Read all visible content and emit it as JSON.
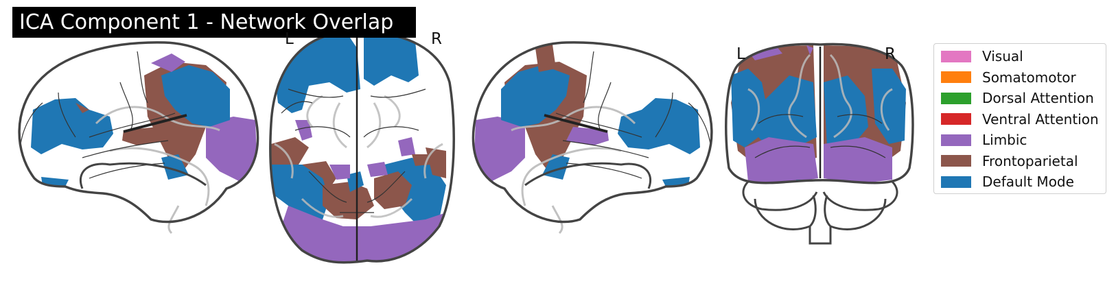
{
  "title": "ICA Component 1 - Network Overlap",
  "hemisphere_labels": {
    "left": "L",
    "right": "R"
  },
  "legend": [
    {
      "label": "Visual",
      "color": "#e377c2"
    },
    {
      "label": "Somatomotor",
      "color": "#ff7f0e"
    },
    {
      "label": "Dorsal Attention",
      "color": "#2ca02c"
    },
    {
      "label": "Ventral Attention",
      "color": "#d62728"
    },
    {
      "label": "Limbic",
      "color": "#9467bd"
    },
    {
      "label": "Frontoparietal",
      "color": "#8c564b"
    },
    {
      "label": "Default Mode",
      "color": "#1f77b4"
    }
  ],
  "views": [
    "sagittal-left",
    "axial",
    "sagittal-right",
    "coronal"
  ]
}
